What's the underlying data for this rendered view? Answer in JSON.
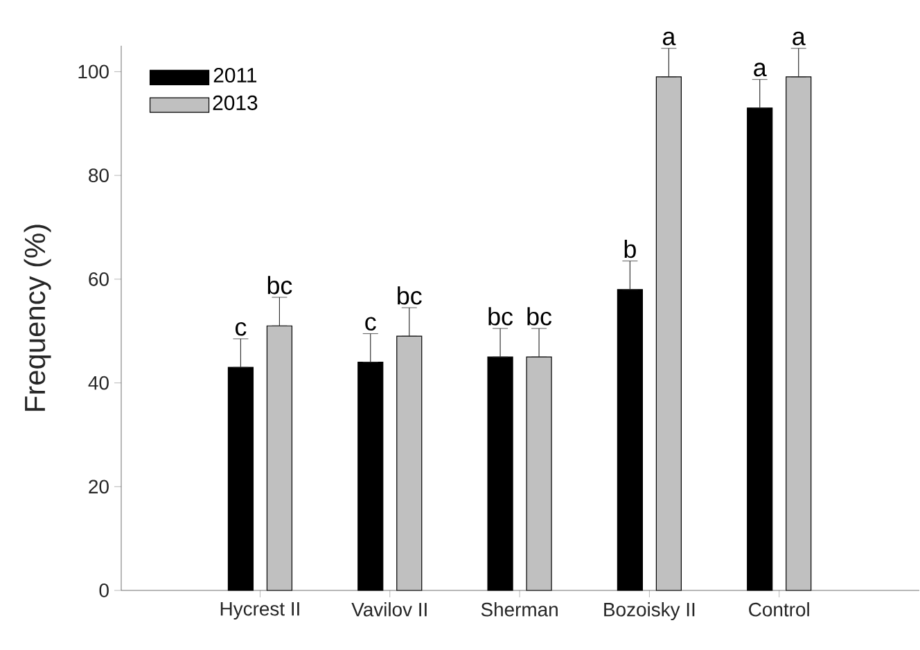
{
  "chart_data": {
    "type": "bar",
    "ylabel": "Frequency (%)",
    "categories": [
      "Hycrest II",
      "Vavilov II",
      "Sherman",
      "Bozoisky II",
      "Control"
    ],
    "series": [
      {
        "name": "2011",
        "color": "#000000",
        "values": [
          43,
          44,
          45,
          58,
          93
        ],
        "errors": [
          [
            43,
            48.5
          ],
          [
            44,
            49.5
          ],
          [
            45,
            50.5
          ],
          [
            58,
            63.5
          ],
          [
            93,
            98.5
          ]
        ]
      },
      {
        "name": "2013",
        "color": "#c0c0c0",
        "values": [
          51,
          49,
          45,
          99,
          99
        ],
        "errors": [
          [
            51,
            56.5
          ],
          [
            49,
            54.5
          ],
          [
            45,
            50.5
          ],
          [
            99,
            104.5
          ],
          [
            99,
            104.5
          ]
        ]
      }
    ],
    "ylim": [
      0,
      105
    ],
    "yticks": [
      0,
      20,
      40,
      60,
      80,
      100
    ],
    "grid": false,
    "legend": "top left",
    "annotations": [
      "c",
      "bc",
      "c",
      "bc",
      "bc",
      "bc",
      "b",
      "a",
      "a",
      "a"
    ]
  }
}
